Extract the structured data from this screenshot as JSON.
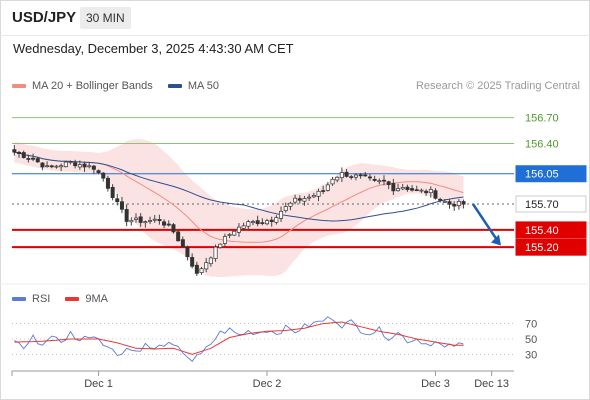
{
  "header": {
    "symbol": "USD/JPY",
    "interval": "30 MIN"
  },
  "timestamp": "Wednesday, December 3, 2025 4:43:30 AM CET",
  "legend": {
    "ma20_label": "MA 20 + Bollinger Bands",
    "ma20_color": "#f28b82",
    "ma50_label": "MA 50",
    "ma50_color": "#2c4f8f",
    "research": "Research © 2025 Trading Central"
  },
  "rsi_legend": {
    "rsi_label": "RSI",
    "rsi_color": "#5b7bd5",
    "ma_label": "9MA",
    "ma_color": "#e53935"
  },
  "chart_data": {
    "type": "candlestick",
    "ylim": [
      154.82,
      156.95
    ],
    "current_price": 155.7,
    "levels": [
      {
        "label": "156.70",
        "value": 156.7,
        "kind": "target",
        "color": "#8dc26f"
      },
      {
        "label": "156.40",
        "value": 156.4,
        "kind": "target",
        "color": "#8dc26f"
      },
      {
        "label": "156.05",
        "value": 156.05,
        "kind": "pivot",
        "color": "#1f6fd6"
      },
      {
        "label": "155.70",
        "value": 155.7,
        "kind": "last",
        "color": "#222222"
      },
      {
        "label": "155.40",
        "value": 155.4,
        "kind": "support",
        "color": "#e00000"
      },
      {
        "label": "155.20",
        "value": 155.2,
        "kind": "support",
        "color": "#e00000"
      }
    ],
    "x_labels": [
      {
        "label": "Dec 1",
        "bar": 18
      },
      {
        "label": "Dec 2",
        "bar": 54
      },
      {
        "label": "Dec 3",
        "bar": 90
      },
      {
        "label": "Dec 13",
        "bar": 102
      }
    ],
    "forecast_arrow": {
      "from_bar": 98,
      "from": 155.7,
      "to_bar": 104,
      "to": 155.22
    },
    "price_path": [
      [
        0,
        156.3
      ],
      [
        4,
        156.22
      ],
      [
        7,
        156.12
      ],
      [
        12,
        156.18
      ],
      [
        17,
        156.12
      ],
      [
        19,
        156.0
      ],
      [
        22,
        155.7
      ],
      [
        24,
        155.52
      ],
      [
        28,
        155.5
      ],
      [
        31,
        155.52
      ],
      [
        34,
        155.38
      ],
      [
        36,
        155.2
      ],
      [
        38,
        155.0
      ],
      [
        39,
        154.88
      ],
      [
        40,
        154.96
      ],
      [
        42,
        155.1
      ],
      [
        44,
        155.25
      ],
      [
        47,
        155.4
      ],
      [
        50,
        155.48
      ],
      [
        53,
        155.5
      ],
      [
        55,
        155.52
      ],
      [
        57,
        155.62
      ],
      [
        60,
        155.74
      ],
      [
        63,
        155.78
      ],
      [
        66,
        155.85
      ],
      [
        68,
        156.0
      ],
      [
        70,
        156.05
      ],
      [
        73,
        156.02
      ],
      [
        75,
        156.0
      ],
      [
        77,
        155.95
      ],
      [
        79,
        155.96
      ],
      [
        81,
        155.88
      ],
      [
        83,
        155.9
      ],
      [
        86,
        155.85
      ],
      [
        89,
        155.84
      ],
      [
        91,
        155.75
      ],
      [
        93,
        155.7
      ],
      [
        96,
        155.7
      ]
    ],
    "rsi": {
      "yticks": [
        70,
        50,
        30
      ],
      "ylim": [
        15,
        85
      ],
      "rsi_path": [
        [
          0,
          50
        ],
        [
          2,
          38
        ],
        [
          4,
          52
        ],
        [
          6,
          42
        ],
        [
          8,
          56
        ],
        [
          10,
          44
        ],
        [
          12,
          58
        ],
        [
          14,
          48
        ],
        [
          16,
          55
        ],
        [
          18,
          52
        ],
        [
          20,
          40
        ],
        [
          22,
          30
        ],
        [
          24,
          38
        ],
        [
          26,
          34
        ],
        [
          28,
          42
        ],
        [
          30,
          36
        ],
        [
          32,
          44
        ],
        [
          34,
          40
        ],
        [
          36,
          34
        ],
        [
          38,
          22
        ],
        [
          40,
          30
        ],
        [
          42,
          44
        ],
        [
          44,
          58
        ],
        [
          46,
          62
        ],
        [
          48,
          55
        ],
        [
          50,
          60
        ],
        [
          52,
          58
        ],
        [
          54,
          62
        ],
        [
          56,
          58
        ],
        [
          58,
          64
        ],
        [
          60,
          60
        ],
        [
          62,
          66
        ],
        [
          64,
          70
        ],
        [
          66,
          74
        ],
        [
          68,
          78
        ],
        [
          70,
          68
        ],
        [
          72,
          72
        ],
        [
          74,
          62
        ],
        [
          76,
          58
        ],
        [
          78,
          62
        ],
        [
          80,
          52
        ],
        [
          82,
          58
        ],
        [
          84,
          48
        ],
        [
          86,
          50
        ],
        [
          88,
          44
        ],
        [
          90,
          46
        ],
        [
          92,
          38
        ],
        [
          94,
          42
        ]
      ],
      "ma_path": [
        [
          0,
          46
        ],
        [
          6,
          47
        ],
        [
          12,
          50
        ],
        [
          18,
          50
        ],
        [
          22,
          45
        ],
        [
          26,
          38
        ],
        [
          30,
          37
        ],
        [
          34,
          38
        ],
        [
          38,
          30
        ],
        [
          42,
          38
        ],
        [
          46,
          52
        ],
        [
          50,
          57
        ],
        [
          54,
          60
        ],
        [
          58,
          61
        ],
        [
          62,
          64
        ],
        [
          66,
          70
        ],
        [
          70,
          72
        ],
        [
          74,
          66
        ],
        [
          78,
          60
        ],
        [
          82,
          56
        ],
        [
          86,
          50
        ],
        [
          90,
          46
        ],
        [
          94,
          42
        ]
      ]
    }
  }
}
